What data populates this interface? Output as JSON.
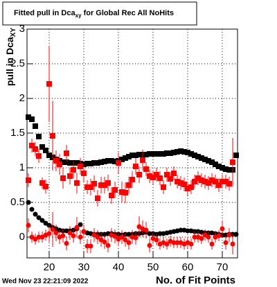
{
  "chart_data": {
    "type": "scatter",
    "title": "Fitted pull in Dca",
    "title_sub": "xy",
    "title_rest": " for Global Rec All NoHits",
    "ylabel": "pull in Dca",
    "ylabel_sub": "XY",
    "xlabel": "No. of Fit Points",
    "footer": "Wed Nov 23 22:21:09 2022",
    "xlim": [
      13.6,
      74.4
    ],
    "ylim": [
      -0.3,
      3
    ],
    "xticks": [
      20,
      30,
      40,
      50,
      60,
      70
    ],
    "yticks": [
      0,
      0.5,
      1,
      1.5,
      2,
      2.5,
      3
    ],
    "grid": true,
    "x": [
      14,
      15,
      16,
      17,
      18,
      19,
      20,
      21,
      22,
      23,
      24,
      25,
      26,
      27,
      28,
      29,
      30,
      31,
      32,
      33,
      34,
      35,
      36,
      37,
      38,
      39,
      40,
      41,
      42,
      43,
      44,
      45,
      46,
      47,
      48,
      49,
      50,
      51,
      52,
      53,
      54,
      55,
      56,
      57,
      58,
      59,
      60,
      61,
      62,
      63,
      64,
      65,
      66,
      67,
      68,
      69,
      70,
      71,
      72,
      73,
      74
    ],
    "series": [
      {
        "color": "#000000",
        "marker": "square",
        "values": [
          1.73,
          1.7,
          1.6,
          1.45,
          1.3,
          1.25,
          1.18,
          1.15,
          1.12,
          1.1,
          1.08,
          1.08,
          1.07,
          1.07,
          1.07,
          1.06,
          1.05,
          1.06,
          1.06,
          1.07,
          1.07,
          1.08,
          1.09,
          1.1,
          1.1,
          1.09,
          1.1,
          1.12,
          1.14,
          1.16,
          1.18,
          1.18,
          1.19,
          1.19,
          1.19,
          1.2,
          1.2,
          1.2,
          1.2,
          1.2,
          1.21,
          1.21,
          1.22,
          1.23,
          1.24,
          1.23,
          1.22,
          1.2,
          1.18,
          1.16,
          1.14,
          1.12,
          1.1,
          1.08,
          1.05,
          1.02,
          1.0,
          0.98,
          0.97,
          0.97,
          1.18
        ]
      },
      {
        "color": "#ff0000",
        "marker": "square",
        "values": [
          0.82,
          1.32,
          1.27,
          1.17,
          0.78,
          0.73,
          2.21,
          1.46,
          1.1,
          1.05,
          0.85,
          1.21,
          0.88,
          0.97,
          0.78,
          1.02,
          0.92,
          0.72,
          0.72,
          0.77,
          0.56,
          0.75,
          0.75,
          0.78,
          0.6,
          0.68,
          1.07,
          0.65,
          0.64,
          0.75,
          0.83,
          1.02,
          0.9,
          1.11,
          0.98,
          0.88,
          0.86,
          0.9,
          0.85,
          0.72,
          0.9,
          0.84,
          0.92,
          0.8,
          0.78,
          0.76,
          0.7,
          0.72,
          0.8,
          0.85,
          0.82,
          0.8,
          0.78,
          0.82,
          0.8,
          0.75,
          0.8,
          0.8,
          0.77,
          1.08,
          null
        ],
        "errors": [
          0.1,
          0.1,
          0.1,
          0.1,
          0.08,
          0.1,
          0.55,
          0.5,
          0.15,
          0.15,
          0.15,
          0.12,
          0.12,
          0.12,
          0.15,
          0.12,
          0.12,
          0.1,
          0.12,
          0.12,
          0.12,
          0.12,
          0.12,
          0.12,
          0.12,
          0.12,
          0.15,
          0.15,
          0.15,
          0.12,
          0.12,
          0.12,
          0.12,
          0.15,
          0.1,
          0.1,
          0.1,
          0.1,
          0.1,
          0.1,
          0.1,
          0.1,
          0.1,
          0.1,
          0.1,
          0.1,
          0.1,
          0.1,
          0.1,
          0.1,
          0.1,
          0.1,
          0.1,
          0.1,
          0.1,
          0.1,
          0.1,
          0.1,
          0.1,
          0.35,
          null
        ]
      },
      {
        "color": "#000000",
        "marker": "circle",
        "values": [
          0.5,
          0.4,
          0.33,
          0.28,
          0.24,
          0.2,
          0.17,
          0.14,
          0.12,
          0.1,
          0.09,
          0.09,
          0.09,
          0.1,
          0.12,
          0.18,
          0.08,
          0.06,
          0.05,
          0.04,
          0.04,
          0.04,
          0.04,
          0.05,
          0.05,
          0.04,
          0.04,
          0.03,
          0.04,
          0.04,
          0.04,
          0.05,
          0.05,
          0.06,
          0.07,
          0.05,
          0.05,
          0.04,
          0.05,
          0.05,
          0.06,
          0.07,
          0.08,
          0.09,
          0.1,
          0.1,
          0.09,
          0.09,
          0.08,
          0.08,
          0.07,
          0.06,
          0.06,
          0.06,
          0.05,
          0.04,
          0.03,
          0.03,
          0.04,
          0.04,
          0.04
        ]
      },
      {
        "color": "#ff0000",
        "marker": "circle",
        "values": [
          0.17,
          0.0,
          -0.03,
          0.0,
          0.0,
          0.03,
          0.05,
          0.11,
          0.06,
          0.0,
          0.02,
          -0.09,
          0.06,
          0.02,
          0.14,
          0.0,
          0.08,
          -0.13,
          -0.13,
          0.03,
          0.0,
          -0.04,
          -0.07,
          -0.12,
          0.03,
          0.01,
          -0.03,
          0.0,
          -0.04,
          -0.08,
          0.0,
          -0.01,
          0.15,
          0.12,
          0.1,
          -0.12,
          -0.02,
          -0.04,
          -0.1,
          -0.08,
          -0.1,
          -0.06,
          -0.08,
          -0.08,
          -0.08,
          -0.1,
          -0.08,
          -0.1,
          0.0,
          0.0,
          -0.02,
          0.03,
          0.0,
          -0.1,
          0.0,
          0.02,
          0.12,
          -0.08,
          0.03,
          -0.1,
          null
        ],
        "errors": [
          0.1,
          0.08,
          0.08,
          0.08,
          0.08,
          0.08,
          0.12,
          0.25,
          0.12,
          0.1,
          0.1,
          0.1,
          0.1,
          0.1,
          0.15,
          0.1,
          0.1,
          0.1,
          0.1,
          0.1,
          0.1,
          0.1,
          0.1,
          0.1,
          0.1,
          0.1,
          0.1,
          0.1,
          0.1,
          0.1,
          0.1,
          0.1,
          0.15,
          0.12,
          0.12,
          0.1,
          0.08,
          0.08,
          0.08,
          0.08,
          0.08,
          0.08,
          0.08,
          0.08,
          0.08,
          0.08,
          0.08,
          0.08,
          0.08,
          0.08,
          0.08,
          0.08,
          0.08,
          0.08,
          0.08,
          0.08,
          0.12,
          0.1,
          0.1,
          0.15,
          null
        ]
      }
    ]
  }
}
